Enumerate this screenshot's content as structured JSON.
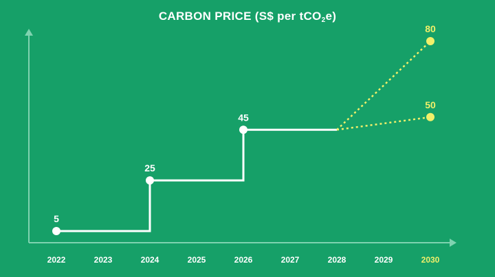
{
  "title": {
    "prefix": "CARBON PRICE (S$ per tCO",
    "subscript": "2",
    "suffix": "e)"
  },
  "colors": {
    "background": "#16a068",
    "axis": "#7fd3b0",
    "step_line": "#ffffff",
    "projection": "#f0f06a",
    "tick_text": "#ffffff",
    "highlight_tick_text": "#f0f06a"
  },
  "chart_data": {
    "type": "line",
    "title": "CARBON PRICE (S$ per tCO2e)",
    "xlabel": "",
    "ylabel": "",
    "x_categories": [
      "2022",
      "2023",
      "2024",
      "2025",
      "2026",
      "2027",
      "2028",
      "2029",
      "2030"
    ],
    "highlight_categories": [
      "2030"
    ],
    "ylim": [
      0,
      85
    ],
    "grid": false,
    "series": [
      {
        "style": "step",
        "points": [
          {
            "x": "2022",
            "y": 5
          },
          {
            "x": "2024",
            "y": 25
          },
          {
            "x": "2026",
            "y": 45
          },
          {
            "x": "2028",
            "y": 45
          }
        ],
        "labeled_points": [
          {
            "x": "2022",
            "y": 5,
            "label": "5"
          },
          {
            "x": "2024",
            "y": 25,
            "label": "25"
          },
          {
            "x": "2026",
            "y": 45,
            "label": "45"
          }
        ]
      },
      {
        "style": "dotted",
        "points": [
          {
            "x": "2028",
            "y": 45
          },
          {
            "x": "2030",
            "y": 80
          }
        ],
        "labeled_points": [
          {
            "x": "2030",
            "y": 80,
            "label": "80"
          }
        ]
      },
      {
        "style": "dotted",
        "points": [
          {
            "x": "2028",
            "y": 45
          },
          {
            "x": "2030",
            "y": 50
          }
        ],
        "labeled_points": [
          {
            "x": "2030",
            "y": 50,
            "label": "50"
          }
        ]
      }
    ]
  }
}
